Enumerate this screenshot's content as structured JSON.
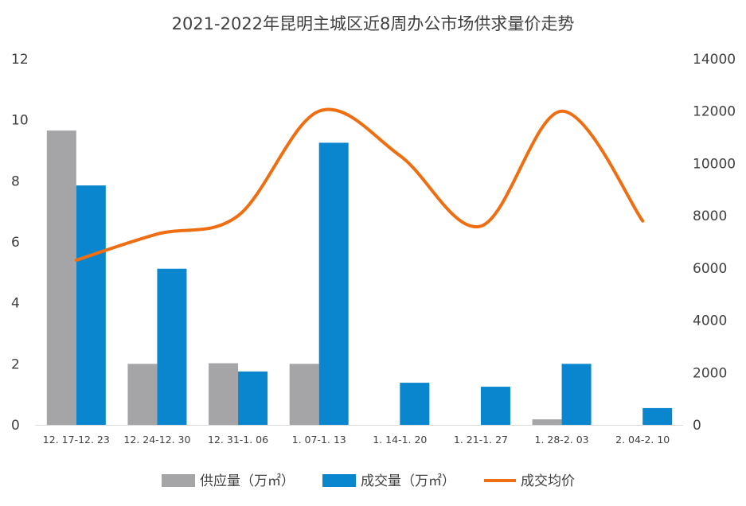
{
  "chart_data": {
    "type": "bar",
    "title": "2021-2022年昆明主城区近8周办公市场供求量价走势",
    "categories": [
      "12.17-12.23",
      "12.24-12.30",
      "12.31-1.06",
      "1.07-1.13",
      "1.14-1.20",
      "1.21-1.27",
      "1.28-2.03",
      "2.04-2.10"
    ],
    "category_labels": [
      "12. 17-12. 23",
      "12. 24-12. 30",
      "12. 31-1. 06",
      "1. 07-1. 13",
      "1. 14-1. 20",
      "1. 21-1. 27",
      "1. 28-2. 03",
      "2. 04-2. 10"
    ],
    "series": [
      {
        "name": "供应量（万㎡）",
        "kind": "bar",
        "axis": "left",
        "color": "#A5A5A7",
        "values": [
          9.65,
          2.0,
          2.02,
          2.0,
          0,
          0,
          0.18,
          0
        ]
      },
      {
        "name": "成交量（万㎡）",
        "kind": "bar",
        "axis": "left",
        "color": "#0A86CE",
        "values": [
          7.85,
          5.12,
          1.75,
          9.25,
          1.38,
          1.25,
          2.0,
          0.55
        ]
      },
      {
        "name": "成交均价",
        "kind": "line",
        "axis": "right",
        "color": "#EE6E11",
        "values": [
          6300,
          7300,
          8000,
          12000,
          10300,
          7600,
          12000,
          7800
        ]
      }
    ],
    "ylim_left": [
      0,
      12
    ],
    "yticks_left": [
      0,
      2,
      4,
      6,
      8,
      10,
      12
    ],
    "ylim_right": [
      0,
      14000
    ],
    "yticks_right": [
      0,
      2000,
      4000,
      6000,
      8000,
      10000,
      12000,
      14000
    ],
    "grid": false,
    "legend_position": "bottom"
  }
}
